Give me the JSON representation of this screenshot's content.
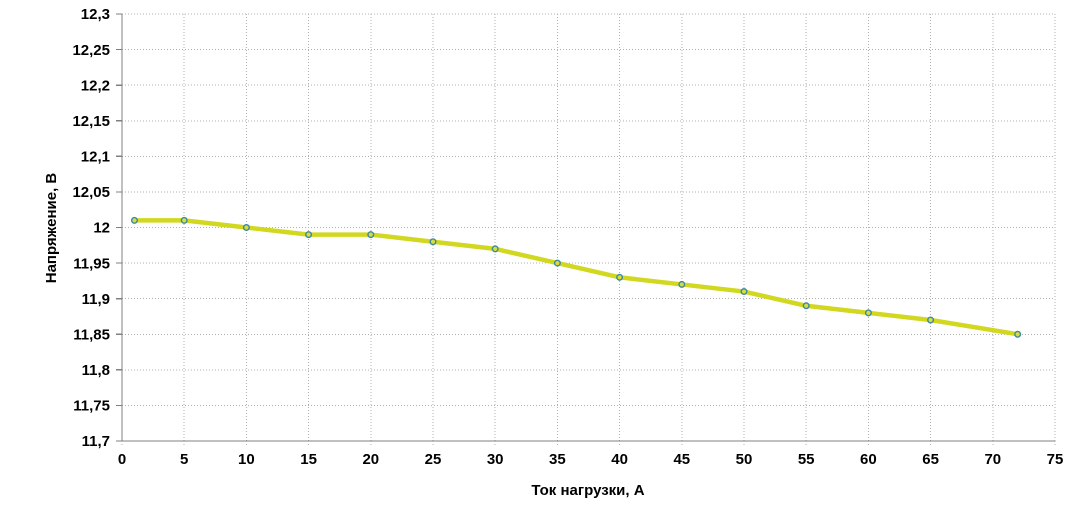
{
  "chart_data": {
    "type": "line",
    "xlabel": "Ток нагрузки, А",
    "ylabel": "Напряжение, В",
    "x": [
      1,
      5,
      10,
      15,
      20,
      25,
      30,
      35,
      40,
      45,
      50,
      55,
      60,
      65,
      72
    ],
    "y": [
      12.01,
      12.01,
      12.0,
      11.99,
      11.99,
      11.98,
      11.97,
      11.95,
      11.93,
      11.92,
      11.91,
      11.89,
      11.88,
      11.87,
      11.85
    ],
    "xlim": [
      0,
      75
    ],
    "ylim": [
      11.7,
      12.3
    ],
    "x_ticks": [
      0,
      5,
      10,
      15,
      20,
      25,
      30,
      35,
      40,
      45,
      50,
      55,
      60,
      65,
      70,
      75
    ],
    "x_tick_labels": [
      "0",
      "5",
      "10",
      "15",
      "20",
      "25",
      "30",
      "35",
      "40",
      "45",
      "50",
      "55",
      "60",
      "65",
      "70",
      "75"
    ],
    "y_ticks": [
      11.7,
      11.75,
      11.8,
      11.85,
      11.9,
      11.95,
      12,
      12.05,
      12.1,
      12.15,
      12.2,
      12.25,
      12.3
    ],
    "y_tick_labels": [
      "11,7",
      "11,75",
      "11,8",
      "11,85",
      "11,9",
      "11,95",
      "12",
      "12,05",
      "12,1",
      "12,15",
      "12,2",
      "12,25",
      "12,3"
    ],
    "grid": true,
    "legend": false,
    "colors": {
      "line": "#d1d81f",
      "marker_fill": "#d7dd3a",
      "marker_stroke": "#3d89a0",
      "grid": "#b0b0b0",
      "axis": "#808080",
      "text": "#000000",
      "background": "#ffffff"
    }
  }
}
